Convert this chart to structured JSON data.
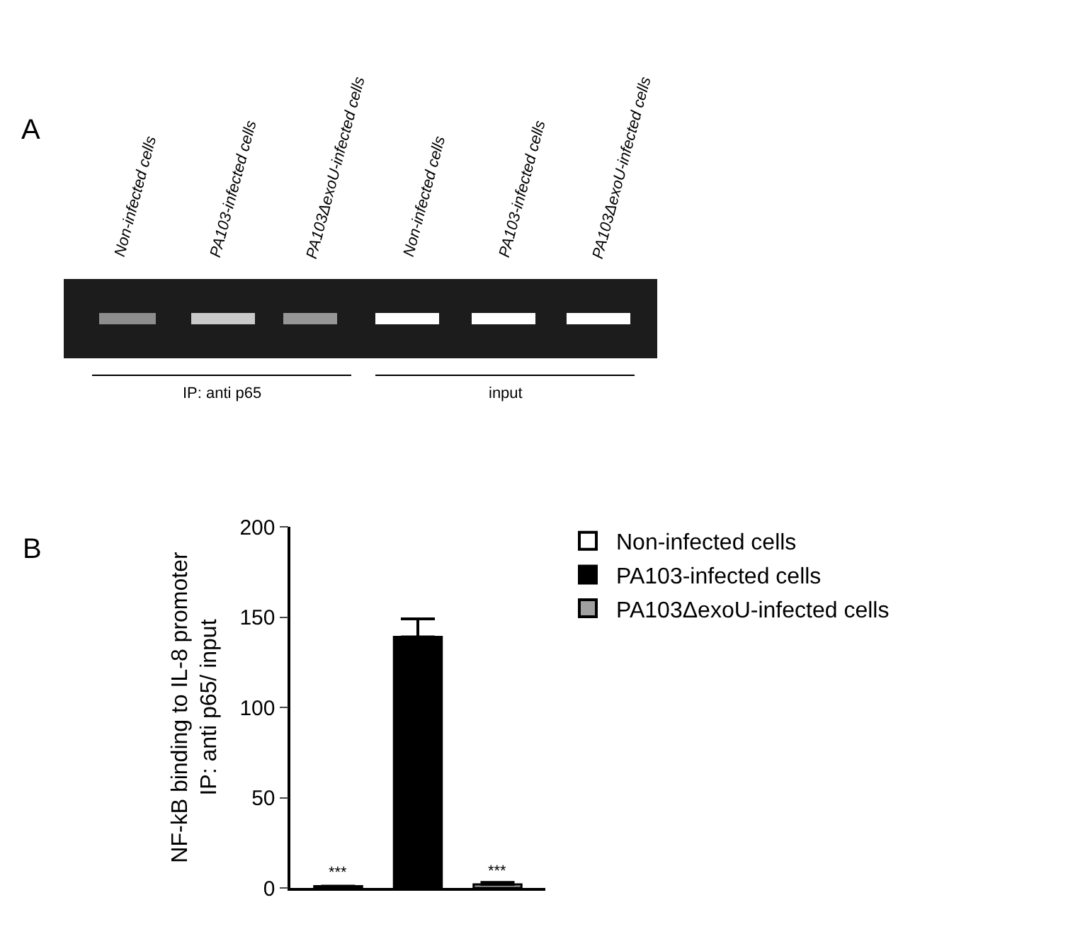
{
  "chart_data": {
    "type": "bar",
    "categories": [
      null,
      null,
      null
    ],
    "ylabel": "NF-kB binding to IL-8 promoter\nIP: anti p65/ input",
    "series": [
      {
        "name": "Non-infected cells",
        "color": "#ffffff",
        "values": [
          1,
          null,
          null
        ],
        "errors": [
          null,
          null,
          null
        ],
        "value_labels": [
          "***",
          null,
          null
        ]
      },
      {
        "name": "PA103-infected cells",
        "color": "#000000",
        "values": [
          null,
          139,
          null
        ],
        "errors": [
          null,
          [
            139,
            149
          ],
          null
        ]
      },
      {
        "name": "PA103ΔexoU-infected cells",
        "color": "#a0a0a0",
        "values": [
          null,
          null,
          2
        ],
        "errors": [
          null,
          null,
          [
            2,
            3
          ]
        ],
        "value_labels": [
          null,
          null,
          "***"
        ]
      }
    ],
    "ylim": [
      0,
      200
    ],
    "yticks": [
      0,
      50,
      100,
      150,
      200
    ],
    "legend": "right",
    "annotations": [
      "A",
      "Non-infected cells",
      "PA103-infected cells",
      "PA103ΔexoU-infected cells",
      "Non-infected cells",
      "PA103-infected cells",
      "PA103ΔexoU-infected cells",
      "IP: anti p65",
      "input",
      "B"
    ]
  }
}
